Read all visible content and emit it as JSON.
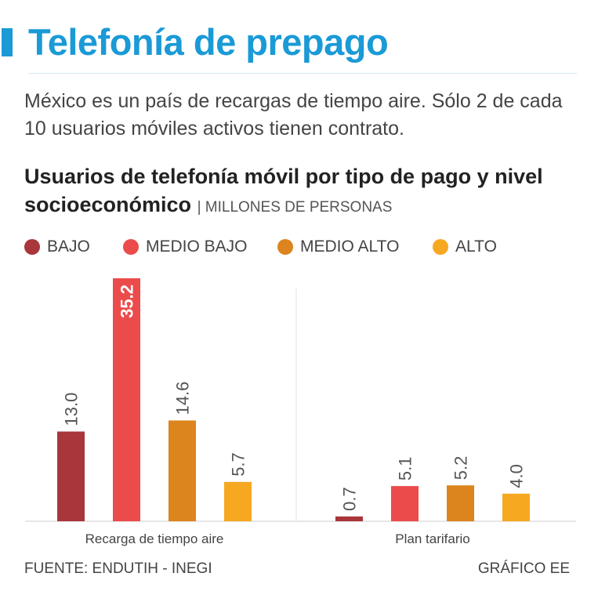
{
  "header": {
    "title": "Telefonía de prepago",
    "subtitle": "México es un país de recargas de tiempo aire. Sólo 2 de cada 10 usuarios móviles activos tienen contrato."
  },
  "chart_data": {
    "type": "bar",
    "title": "Usuarios de telefonía móvil por tipo de pago y nivel socioeconómico",
    "units": "| MILLONES DE PERSONAS",
    "categories": [
      "Recarga de tiempo aire",
      "Plan tarifario"
    ],
    "series": [
      {
        "name": "BAJO",
        "color": "#a8363a",
        "values": [
          13.0,
          0.7
        ]
      },
      {
        "name": "MEDIO BAJO",
        "color": "#ec4b4c",
        "values": [
          35.2,
          5.1
        ]
      },
      {
        "name": "MEDIO ALTO",
        "color": "#dc841d",
        "values": [
          14.6,
          5.2
        ]
      },
      {
        "name": "ALTO",
        "color": "#f6a821",
        "values": [
          5.7,
          4.0
        ]
      }
    ],
    "value_labels": [
      [
        "13.0",
        "0.7"
      ],
      [
        "35.2",
        "5.1"
      ],
      [
        "14.6",
        "5.2"
      ],
      [
        "5.7",
        "4.0"
      ]
    ],
    "highlight_value": "35.2",
    "ylim": [
      0,
      35.2
    ],
    "grid": false
  },
  "footer": {
    "source": "FUENTE: ENDUTIH - INEGI",
    "credit": "GRÁFICO EE"
  },
  "colors": {
    "accent": "#1a9ad6",
    "axis": "#cccccc"
  }
}
